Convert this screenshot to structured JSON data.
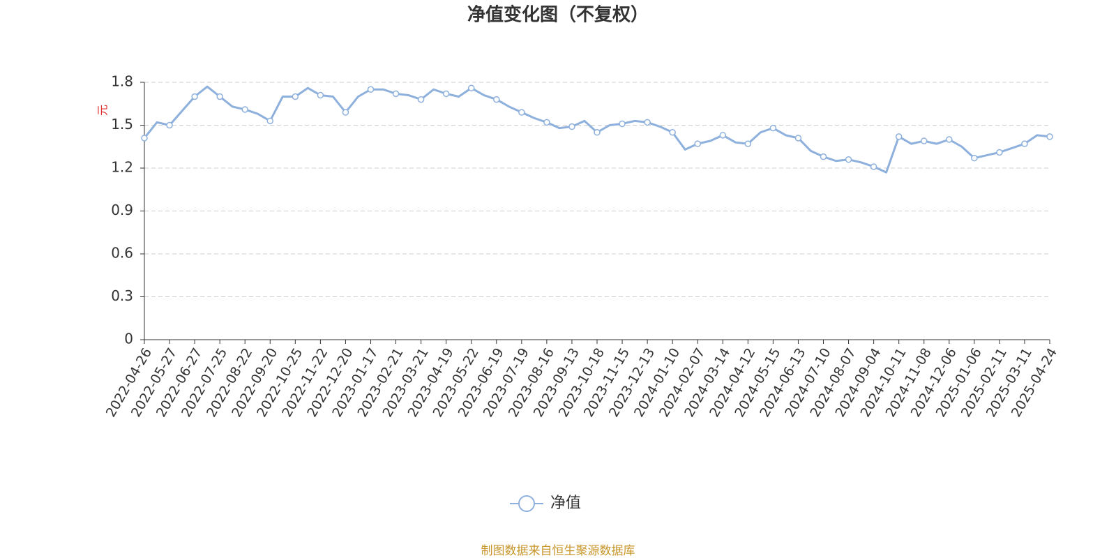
{
  "chart_data": {
    "type": "line",
    "title": "净值变化图（不复权）",
    "y_label": "元",
    "source": "制图数据来自恒生聚源数据库",
    "categories": [
      "2022-04-26",
      null,
      "2022-05-27",
      null,
      "2022-06-27",
      null,
      "2022-07-25",
      null,
      "2022-08-22",
      null,
      "2022-09-20",
      null,
      "2022-10-25",
      null,
      "2022-11-22",
      null,
      "2022-12-20",
      null,
      "2023-01-17",
      null,
      "2023-02-21",
      null,
      "2023-03-21",
      null,
      "2023-04-19",
      null,
      "2023-05-22",
      null,
      "2023-06-19",
      null,
      "2023-07-19",
      null,
      "2023-08-16",
      null,
      "2023-09-13",
      null,
      "2023-10-18",
      null,
      "2023-11-15",
      null,
      "2023-12-13",
      null,
      "2024-01-10",
      null,
      "2024-02-07",
      null,
      "2024-03-14",
      null,
      "2024-04-12",
      null,
      "2024-05-15",
      null,
      "2024-06-13",
      null,
      "2024-07-10",
      null,
      "2024-08-07",
      null,
      "2024-09-04",
      null,
      "2024-10-11",
      null,
      "2024-11-08",
      null,
      "2024-12-06",
      null,
      "2025-01-06",
      null,
      "2025-02-11",
      null,
      "2025-03-11",
      null,
      "2025-04-24"
    ],
    "series": [
      {
        "name": "净值",
        "color": "#8eb0dc",
        "values": [
          1.41,
          1.52,
          1.5,
          1.6,
          1.7,
          1.77,
          1.7,
          1.63,
          1.61,
          1.58,
          1.53,
          1.7,
          1.7,
          1.76,
          1.71,
          1.7,
          1.59,
          1.7,
          1.75,
          1.75,
          1.72,
          1.71,
          1.68,
          1.75,
          1.72,
          1.7,
          1.76,
          1.71,
          1.68,
          1.63,
          1.59,
          1.55,
          1.52,
          1.48,
          1.49,
          1.53,
          1.45,
          1.5,
          1.51,
          1.53,
          1.52,
          1.49,
          1.45,
          1.33,
          1.37,
          1.39,
          1.43,
          1.38,
          1.37,
          1.45,
          1.48,
          1.43,
          1.41,
          1.32,
          1.28,
          1.25,
          1.26,
          1.24,
          1.21,
          1.17,
          1.42,
          1.37,
          1.39,
          1.37,
          1.4,
          1.35,
          1.27,
          1.29,
          1.31,
          1.34,
          1.37,
          1.43,
          1.42
        ]
      }
    ],
    "ylim": [
      0,
      1.8
    ],
    "yticks": [
      0,
      0.3,
      0.6,
      0.9,
      1.2,
      1.5,
      1.8
    ],
    "grid": true,
    "legend": "bottom"
  }
}
